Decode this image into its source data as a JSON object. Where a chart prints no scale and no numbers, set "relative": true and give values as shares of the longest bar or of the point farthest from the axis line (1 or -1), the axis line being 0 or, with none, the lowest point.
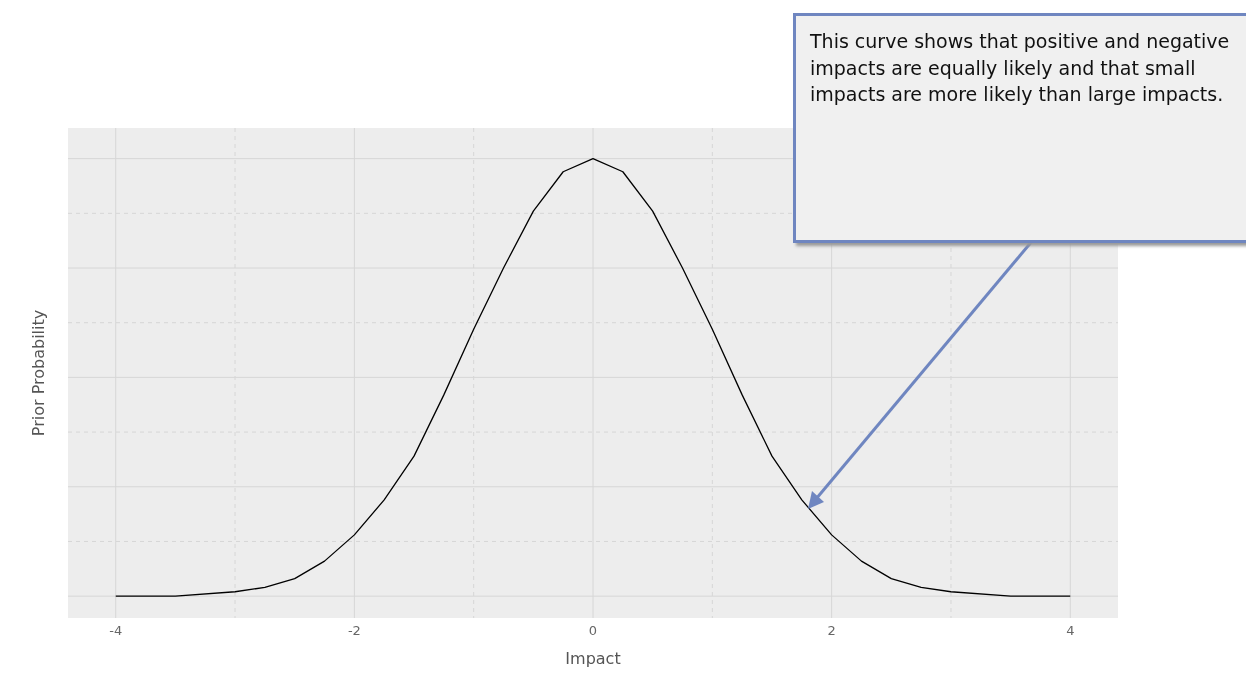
{
  "chart_data": {
    "type": "line",
    "relative": true,
    "xlabel": "Impact",
    "ylabel": "Prior Probability",
    "x": [
      -4,
      -3.5,
      -3,
      -2.75,
      -2.5,
      -2.25,
      -2,
      -1.75,
      -1.5,
      -1.25,
      -1,
      -0.75,
      -0.5,
      -0.25,
      0,
      0.25,
      0.5,
      0.75,
      1,
      1.25,
      1.5,
      1.75,
      2,
      2.25,
      2.5,
      2.75,
      3,
      3.5,
      4
    ],
    "series": [
      {
        "color": "#000000",
        "values": [
          0,
          0,
          0.01,
          0.02,
          0.04,
          0.08,
          0.14,
          0.22,
          0.32,
          0.46,
          0.61,
          0.75,
          0.88,
          0.97,
          1,
          0.97,
          0.88,
          0.75,
          0.61,
          0.46,
          0.32,
          0.22,
          0.14,
          0.08,
          0.04,
          0.02,
          0.01,
          0,
          0
        ]
      }
    ],
    "xlim": [
      -4.4,
      4.4
    ],
    "xticks": [
      -4,
      {
        "value": -3,
        "label": null
      },
      -2,
      {
        "value": -1,
        "label": null
      },
      0,
      {
        "value": 1,
        "label": null
      },
      2,
      {
        "value": 3,
        "label": null
      },
      4
    ],
    "grid": true,
    "marker": "none",
    "line_style": "solid",
    "annotations": [
      "This curve shows that positive and negative impacts are equally likely and that small impacts are more likely than large impacts."
    ]
  }
}
